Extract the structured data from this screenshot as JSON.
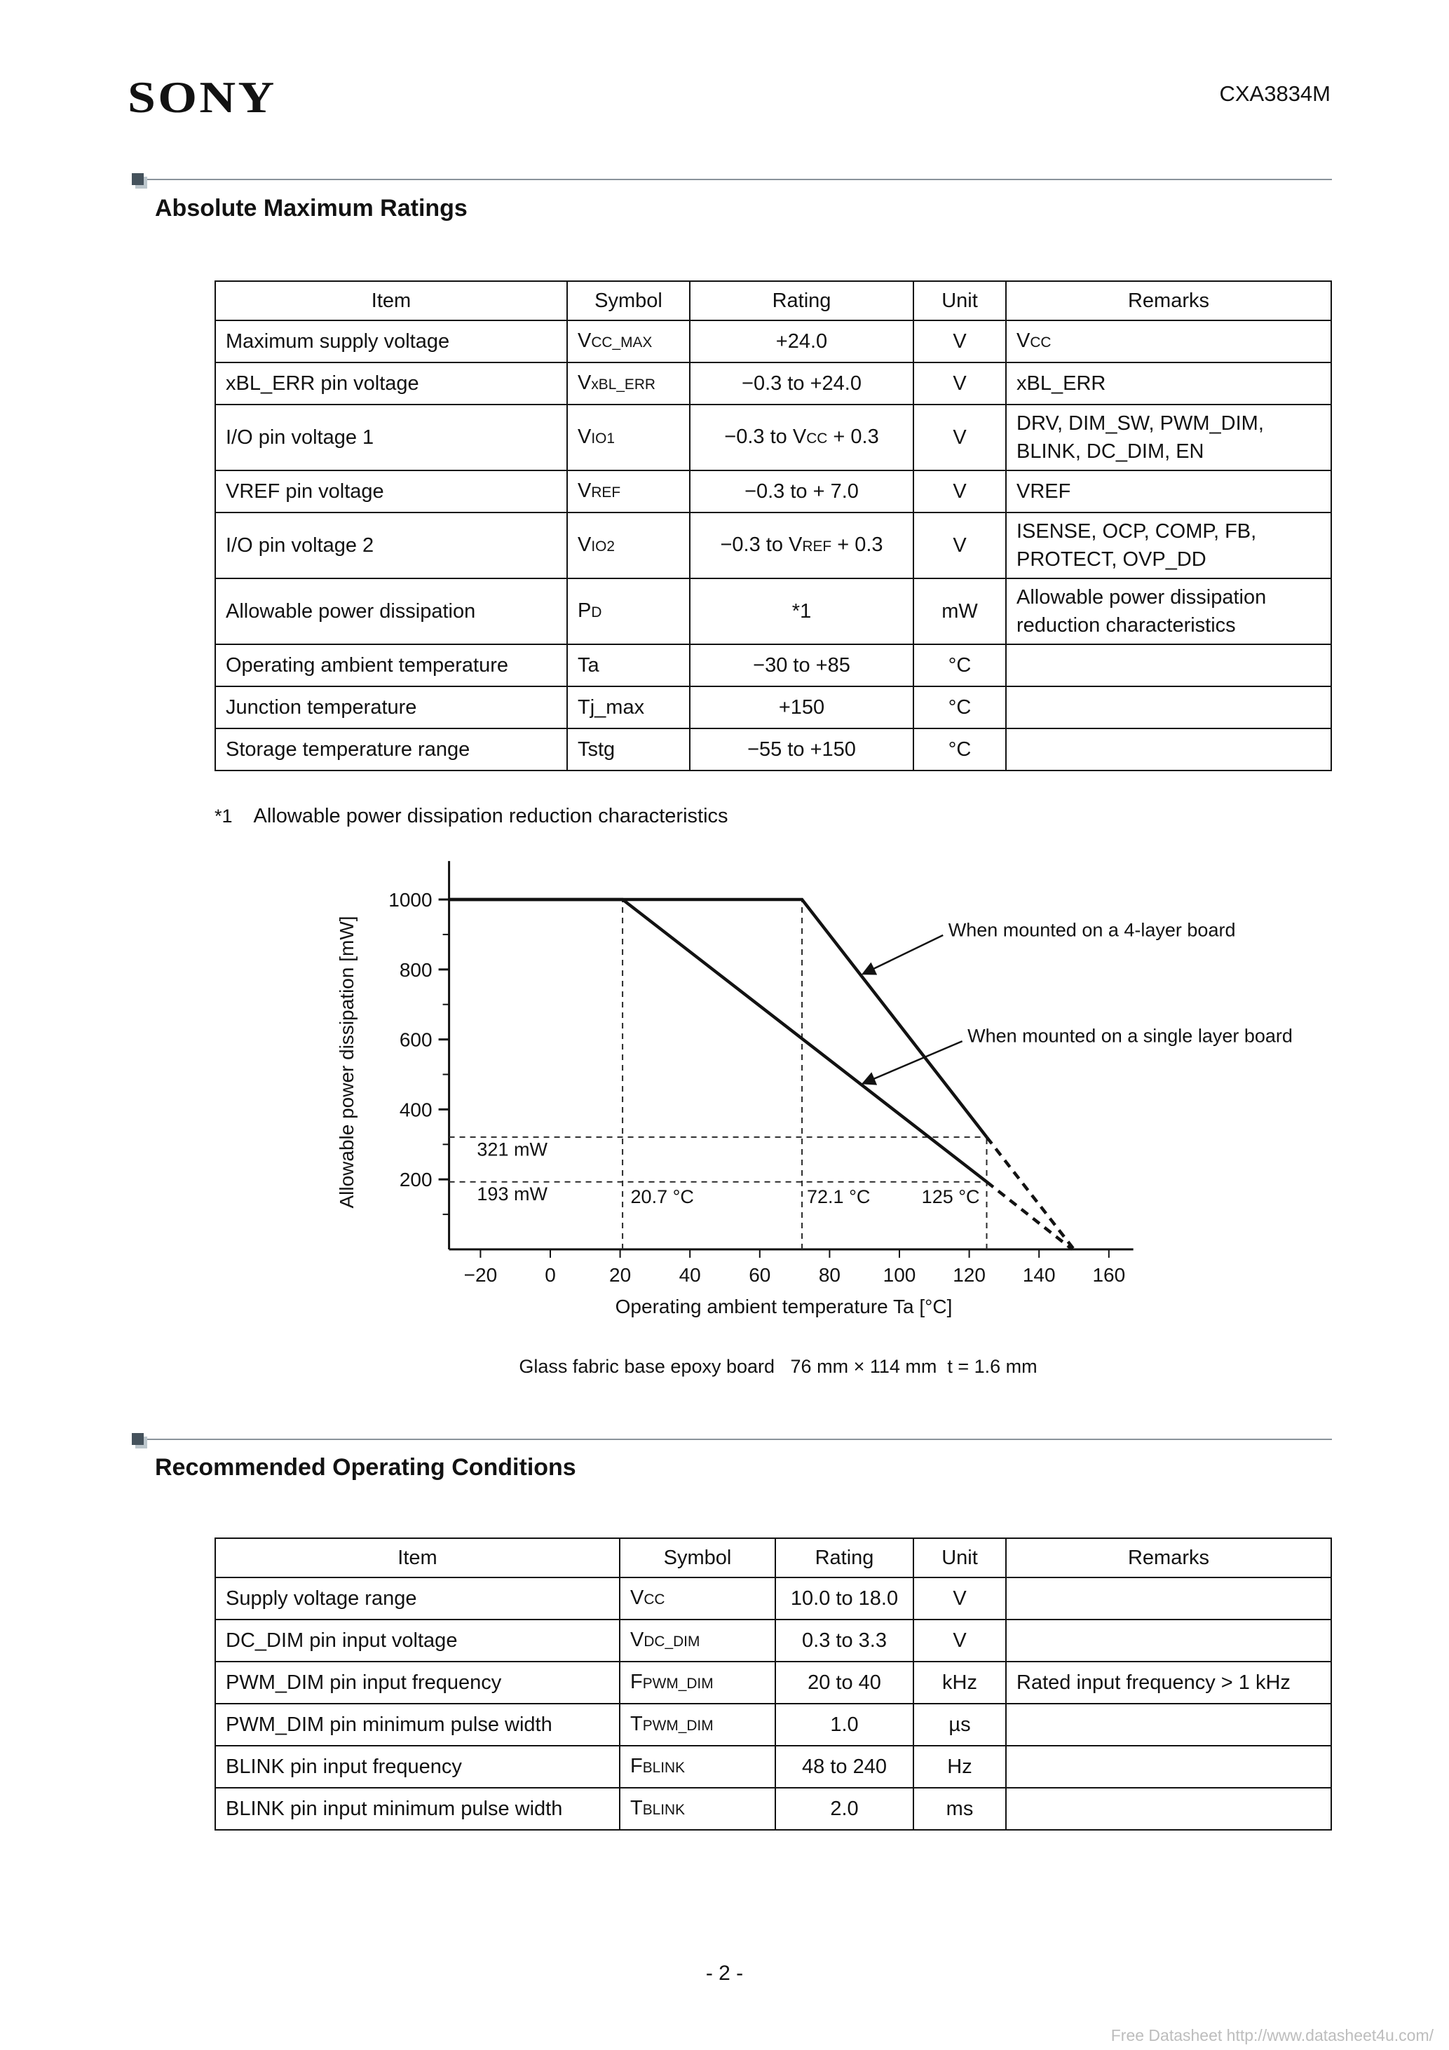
{
  "header": {
    "logo": "SONY",
    "part_number": "CXA3834M"
  },
  "sections": {
    "abs_max": {
      "title": "Absolute Maximum Ratings",
      "table": {
        "headers": [
          "Item",
          "Symbol",
          "Rating",
          "Unit",
          "Remarks"
        ],
        "rows": [
          {
            "item": "Maximum supply voltage",
            "symbol": "V_{CC_MAX}",
            "rating": "+24.0",
            "unit": "V",
            "remarks": "V_{CC}"
          },
          {
            "item": "xBL_ERR pin voltage",
            "symbol": "V_{xBL_ERR}",
            "rating": "−0.3 to +24.0",
            "unit": "V",
            "remarks": "xBL_ERR"
          },
          {
            "item": "I/O pin voltage 1",
            "symbol": "V_{IO1}",
            "rating": "−0.3 to V_{CC} + 0.3",
            "unit": "V",
            "remarks": "DRV, DIM_SW, PWM_DIM, BLINK, DC_DIM, EN"
          },
          {
            "item": "VREF pin voltage",
            "symbol": "V_{REF}",
            "rating": "−0.3 to + 7.0",
            "unit": "V",
            "remarks": "VREF"
          },
          {
            "item": "I/O pin voltage 2",
            "symbol": "V_{IO2}",
            "rating": "−0.3 to V_{REF} + 0.3",
            "unit": "V",
            "remarks": "ISENSE, OCP, COMP, FB, PROTECT, OVP_DD"
          },
          {
            "item": "Allowable power dissipation",
            "symbol": "P_{D}",
            "rating": "*1",
            "unit": "mW",
            "remarks": "Allowable power dissipation reduction characteristics"
          },
          {
            "item": "Operating ambient temperature",
            "symbol": "Ta",
            "rating": "−30 to +85",
            "unit": "°C",
            "remarks": ""
          },
          {
            "item": "Junction temperature",
            "symbol": "Tj_max",
            "rating": "+150",
            "unit": "°C",
            "remarks": ""
          },
          {
            "item": "Storage temperature range",
            "symbol": "Tstg",
            "rating": "−55 to +150",
            "unit": "°C",
            "remarks": ""
          }
        ]
      },
      "footnote_marker": "*1",
      "footnote_text": "Allowable power dissipation reduction characteristics"
    },
    "rec_op": {
      "title": "Recommended Operating Conditions",
      "table": {
        "headers": [
          "Item",
          "Symbol",
          "Rating",
          "Unit",
          "Remarks"
        ],
        "rows": [
          {
            "item": "Supply voltage range",
            "symbol": "V_{CC}",
            "rating": "10.0 to 18.0",
            "unit": "V",
            "remarks": ""
          },
          {
            "item": "DC_DIM pin input voltage",
            "symbol": "V_{DC_DIM}",
            "rating": "0.3 to 3.3",
            "unit": "V",
            "remarks": ""
          },
          {
            "item": "PWM_DIM pin input frequency",
            "symbol": "F_{PWM_DIM}",
            "rating": "20 to 40",
            "unit": "kHz",
            "remarks": "Rated input frequency > 1 kHz"
          },
          {
            "item": "PWM_DIM pin minimum pulse width",
            "symbol": "T_{PWM_DIM}",
            "rating": "1.0",
            "unit": "µs",
            "remarks": ""
          },
          {
            "item": "BLINK pin input frequency",
            "symbol": "F_{BLINK}",
            "rating": "48 to 240",
            "unit": "Hz",
            "remarks": ""
          },
          {
            "item": "BLINK pin input minimum pulse width",
            "symbol": "T_{BLINK}",
            "rating": "2.0",
            "unit": "ms",
            "remarks": ""
          }
        ]
      }
    }
  },
  "chart_data": {
    "type": "line",
    "title": "Allowable power dissipation reduction characteristics",
    "xlabel": "Operating ambient temperature Ta [°C]",
    "ylabel": "Allowable power dissipation [mW]",
    "xlim": [
      -29,
      167
    ],
    "ylim": [
      0,
      1110
    ],
    "xticks": [
      -20,
      0,
      20,
      40,
      60,
      80,
      100,
      120,
      140,
      160
    ],
    "yticks": [
      200,
      400,
      600,
      800,
      1000
    ],
    "yticks_minor": [
      100,
      300,
      500,
      700,
      900
    ],
    "grid": false,
    "series": [
      {
        "name": "When mounted on a 4-layer board",
        "solid": [
          [
            -29,
            1000
          ],
          [
            72.1,
            1000
          ],
          [
            125,
            321
          ]
        ],
        "dashed": [
          [
            125,
            321
          ],
          [
            150,
            0
          ]
        ]
      },
      {
        "name": "When mounted on a single layer board",
        "solid": [
          [
            -29,
            1000
          ],
          [
            20.7,
            1000
          ],
          [
            125,
            193
          ]
        ],
        "dashed": [
          [
            125,
            193
          ],
          [
            149.5,
            0
          ]
        ]
      }
    ],
    "key_points": {
      "max_dissipation_mW": 1000,
      "derate_start_single_layer_C": 20.7,
      "derate_start_4layer_C": 72.1,
      "dissipation_4layer_at_125C_mW": 321,
      "dissipation_single_at_125C_mW": 193,
      "zero_dissipation_C": 150
    },
    "guides": [
      {
        "x1": 20.7,
        "y1": 0,
        "x2": 20.7,
        "y2": 1000
      },
      {
        "x1": 72.1,
        "y1": 0,
        "x2": 72.1,
        "y2": 1000
      },
      {
        "x1": 125,
        "y1": 0,
        "x2": 125,
        "y2": 321
      },
      {
        "x1": -29,
        "y1": 321,
        "x2": 125,
        "y2": 321
      },
      {
        "x1": -29,
        "y1": 193,
        "x2": 125,
        "y2": 193
      }
    ],
    "labels": [
      {
        "text": "321 mW",
        "x": -21,
        "y": 268,
        "anchor": "start"
      },
      {
        "text": "193 mW",
        "x": -21,
        "y": 140,
        "anchor": "start"
      },
      {
        "text": "20.7 °C",
        "x": 23,
        "y": 132,
        "anchor": "start"
      },
      {
        "text": "72.1 °C",
        "x": 73.5,
        "y": 132,
        "anchor": "start"
      },
      {
        "text": "125 °C",
        "x": 123,
        "y": 132,
        "anchor": "end"
      },
      {
        "text": "When mounted on a 4-layer board",
        "x": 114,
        "y": 895,
        "anchor": "start",
        "arrow": {
          "from": [
            112.5,
            898
          ],
          "to": [
            89.5,
            787
          ]
        }
      },
      {
        "text": "When mounted on a single layer board",
        "x": 119.5,
        "y": 592,
        "anchor": "start",
        "arrow": {
          "from": [
            118,
            595
          ],
          "to": [
            89.5,
            474
          ]
        }
      }
    ]
  },
  "chart": {
    "caption": "Glass fabric base epoxy board   76 mm × 114 mm  t = 1.6 mm"
  },
  "footer": {
    "page_number": "- 2 -",
    "watermark": "Free Datasheet http://www.datasheet4u.com/"
  }
}
